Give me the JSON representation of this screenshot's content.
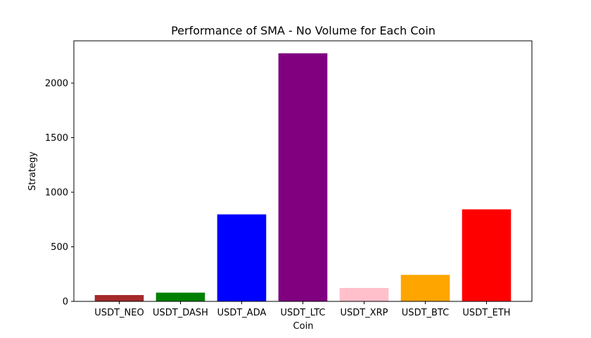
{
  "chart_data": {
    "type": "bar",
    "title": "Performance of SMA - No Volume for Each Coin",
    "xlabel": "Coin",
    "ylabel": "Strategy",
    "categories": [
      "USDT_NEO",
      "USDT_DASH",
      "USDT_ADA",
      "USDT_LTC",
      "USDT_XRP",
      "USDT_BTC",
      "USDT_ETH"
    ],
    "values": [
      58,
      80,
      797,
      2273,
      123,
      243,
      843
    ],
    "colors": [
      "#a52a2a",
      "#008000",
      "#0000ff",
      "#800080",
      "#ffc0cb",
      "#ffa500",
      "#ff0000"
    ],
    "yticks": [
      0,
      500,
      1000,
      1500,
      2000
    ],
    "ylim": [
      0,
      2387
    ],
    "grid": false,
    "legend": "none"
  }
}
